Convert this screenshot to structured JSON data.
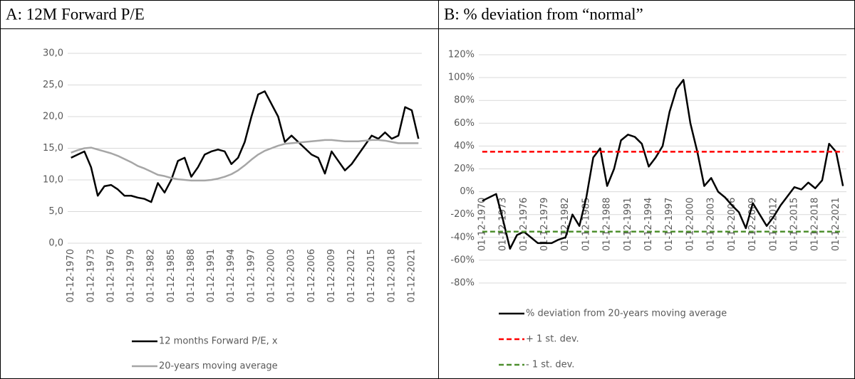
{
  "chart_data": [
    {
      "type": "line",
      "title": "A: 12M Forward P/E",
      "categories": [
        "01-12-1970",
        null,
        null,
        "01-12-1973",
        null,
        null,
        "01-12-1976",
        null,
        null,
        "01-12-1979",
        null,
        null,
        "01-12-1982",
        null,
        null,
        "01-12-1985",
        null,
        null,
        "01-12-1988",
        null,
        null,
        "01-12-1991",
        null,
        null,
        "01-12-1994",
        null,
        null,
        "01-12-1997",
        null,
        null,
        "01-12-2000",
        null,
        null,
        "01-12-2003",
        null,
        null,
        "01-12-2006",
        null,
        null,
        "01-12-2009",
        null,
        null,
        "01-12-2012",
        null,
        null,
        "01-12-2015",
        null,
        null,
        "01-12-2018",
        null,
        null,
        "01-12-2021",
        null
      ],
      "series": [
        {
          "name": "12 months Forward P/E, x",
          "color": "#000000",
          "style": "solid",
          "values": [
            13.5,
            14,
            14.5,
            12,
            7.5,
            9,
            9.2,
            8.5,
            7.5,
            7.5,
            7.2,
            7,
            6.5,
            9.5,
            8,
            10,
            13,
            13.5,
            10.5,
            12,
            14,
            14.5,
            14.8,
            14.5,
            12.5,
            13.5,
            16,
            20,
            23.5,
            24,
            22,
            20,
            16,
            17,
            16,
            15,
            14,
            13.5,
            11,
            14.5,
            13,
            11.5,
            12.5,
            14,
            15.5,
            17,
            16.5,
            17.5,
            16.5,
            17,
            21.5,
            21,
            16.5
          ]
        },
        {
          "name": "20-years moving average",
          "color": "#a6a6a6",
          "style": "solid",
          "values": [
            14.3,
            14.7,
            15,
            15.1,
            14.8,
            14.5,
            14.2,
            13.8,
            13.3,
            12.8,
            12.2,
            11.8,
            11.3,
            10.8,
            10.6,
            10.3,
            10.1,
            10,
            9.9,
            9.9,
            9.9,
            10,
            10.2,
            10.5,
            10.9,
            11.5,
            12.3,
            13.2,
            14,
            14.6,
            15,
            15.4,
            15.7,
            15.8,
            15.9,
            16,
            16.1,
            16.2,
            16.3,
            16.3,
            16.2,
            16.1,
            16.1,
            16.1,
            16.2,
            16.3,
            16.3,
            16.2,
            16,
            15.8,
            15.8,
            15.8,
            15.8
          ]
        }
      ],
      "ylim": [
        0,
        30
      ],
      "yticks": [
        {
          "value": 0,
          "label": "0,0"
        },
        {
          "value": 5,
          "label": "5,0"
        },
        {
          "value": 10,
          "label": "10,0"
        },
        {
          "value": 15,
          "label": "15,0"
        },
        {
          "value": 20,
          "label": "20,0"
        },
        {
          "value": 25,
          "label": "25,0"
        },
        {
          "value": 30,
          "label": "30,0"
        }
      ],
      "grid": true
    },
    {
      "type": "line",
      "title": "B: % deviation from “normal”",
      "categories": [
        "01-12-1970",
        null,
        null,
        "01-12-1973",
        null,
        null,
        "01-12-1976",
        null,
        null,
        "01-12-1979",
        null,
        null,
        "01-12-1982",
        null,
        null,
        "01-12-1985",
        null,
        null,
        "01-12-1988",
        null,
        null,
        "01-12-1991",
        null,
        null,
        "01-12-1994",
        null,
        null,
        "01-12-1997",
        null,
        null,
        "01-12-2000",
        null,
        null,
        "01-12-2003",
        null,
        null,
        "01-12-2006",
        null,
        null,
        "01-12-2009",
        null,
        null,
        "01-12-2012",
        null,
        null,
        "01-12-2015",
        null,
        null,
        "01-12-2018",
        null,
        null,
        "01-12-2021",
        null
      ],
      "series": [
        {
          "name": "% deviation from 20-years moving average",
          "color": "#000000",
          "style": "solid",
          "values": [
            -8,
            -5,
            -2,
            -25,
            -50,
            -38,
            -35,
            -40,
            -45,
            -45,
            -45,
            -42,
            -40,
            -20,
            -30,
            -5,
            30,
            38,
            5,
            20,
            45,
            50,
            48,
            42,
            22,
            30,
            40,
            70,
            90,
            98,
            60,
            35,
            5,
            12,
            0,
            -5,
            -12,
            -18,
            -32,
            -10,
            -20,
            -30,
            -22,
            -12,
            -4,
            4,
            2,
            8,
            3,
            10,
            42,
            35,
            5
          ]
        },
        {
          "name": "+ 1 st. dev.",
          "color": "#ff0000",
          "style": "dashed",
          "values": [
            35,
            35,
            35,
            35,
            35,
            35,
            35,
            35,
            35,
            35,
            35,
            35,
            35,
            35,
            35,
            35,
            35,
            35,
            35,
            35,
            35,
            35,
            35,
            35,
            35,
            35,
            35,
            35,
            35,
            35,
            35,
            35,
            35,
            35,
            35,
            35,
            35,
            35,
            35,
            35,
            35,
            35,
            35,
            35,
            35,
            35,
            35,
            35,
            35,
            35,
            35,
            35,
            35
          ]
        },
        {
          "name": "- 1 st. dev.",
          "color": "#4e8f2e",
          "style": "dashed",
          "values": [
            -35,
            -35,
            -35,
            -35,
            -35,
            -35,
            -35,
            -35,
            -35,
            -35,
            -35,
            -35,
            -35,
            -35,
            -35,
            -35,
            -35,
            -35,
            -35,
            -35,
            -35,
            -35,
            -35,
            -35,
            -35,
            -35,
            -35,
            -35,
            -35,
            -35,
            -35,
            -35,
            -35,
            -35,
            -35,
            -35,
            -35,
            -35,
            -35,
            -35,
            -35,
            -35,
            -35,
            -35,
            -35,
            -35,
            -35,
            -35,
            -35,
            -35,
            -35,
            -35,
            -35
          ]
        }
      ],
      "ylim": [
        -80,
        120
      ],
      "yticks": [
        {
          "value": -80,
          "label": "-80%"
        },
        {
          "value": -60,
          "label": "-60%"
        },
        {
          "value": -40,
          "label": "-40%"
        },
        {
          "value": -20,
          "label": "-20%"
        },
        {
          "value": 0,
          "label": "0%"
        },
        {
          "value": 20,
          "label": "20%"
        },
        {
          "value": 40,
          "label": "40%"
        },
        {
          "value": 60,
          "label": "60%"
        },
        {
          "value": 80,
          "label": "80%"
        },
        {
          "value": 100,
          "label": "100%"
        },
        {
          "value": 120,
          "label": "120%"
        }
      ],
      "grid": true
    }
  ]
}
